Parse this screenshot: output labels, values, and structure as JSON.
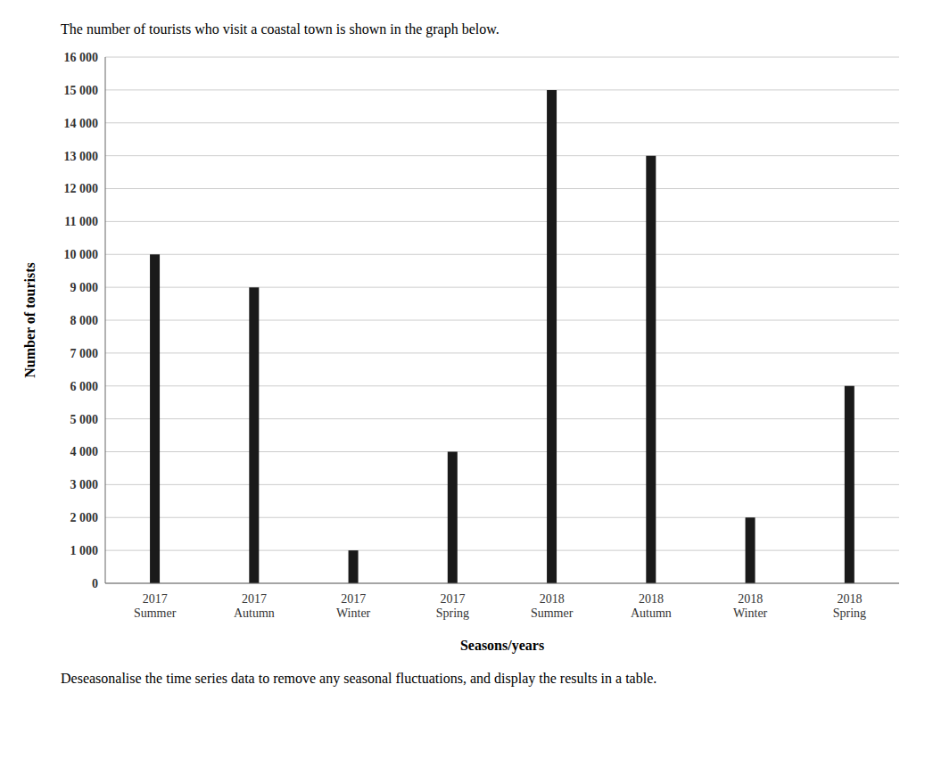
{
  "chart_data": {
    "type": "bar",
    "title": "The number of tourists who visit a coastal town is shown in the graph below.",
    "annotations": [
      "Deseasonalise the time series data to remove any seasonal fluctuations, and display the results in a table."
    ],
    "x_label": "Seasons/years",
    "y_label": "Number of tourists",
    "categories": [
      "2017\nSummer",
      "2017\nAutumn",
      "2017\nWinter",
      "2017\nSpring",
      "2018\nSummer",
      "2018\nAutumn",
      "2018\nWinter",
      "2018\nSpring"
    ],
    "values": [
      10000,
      9000,
      1000,
      4000,
      15000,
      13000,
      2000,
      6000
    ],
    "color": "#1a1a1a",
    "ylim": [
      0,
      16000
    ],
    "yticks": [
      0,
      {
        "value": 1000,
        "label": "1 000"
      },
      {
        "value": 2000,
        "label": "2 000"
      },
      {
        "value": 3000,
        "label": "3 000"
      },
      {
        "value": 4000,
        "label": "4 000"
      },
      {
        "value": 5000,
        "label": "5 000"
      },
      {
        "value": 6000,
        "label": "6 000"
      },
      {
        "value": 7000,
        "label": "7 000"
      },
      {
        "value": 8000,
        "label": "8 000"
      },
      {
        "value": 9000,
        "label": "9 000"
      },
      {
        "value": 10000,
        "label": "10 000"
      },
      {
        "value": 11000,
        "label": "11 000"
      },
      {
        "value": 12000,
        "label": "12 000"
      },
      {
        "value": 13000,
        "label": "13 000"
      },
      {
        "value": 14000,
        "label": "14 000"
      },
      {
        "value": 15000,
        "label": "15 000"
      },
      {
        "value": 16000,
        "label": "16 000"
      }
    ],
    "grid": true
  }
}
